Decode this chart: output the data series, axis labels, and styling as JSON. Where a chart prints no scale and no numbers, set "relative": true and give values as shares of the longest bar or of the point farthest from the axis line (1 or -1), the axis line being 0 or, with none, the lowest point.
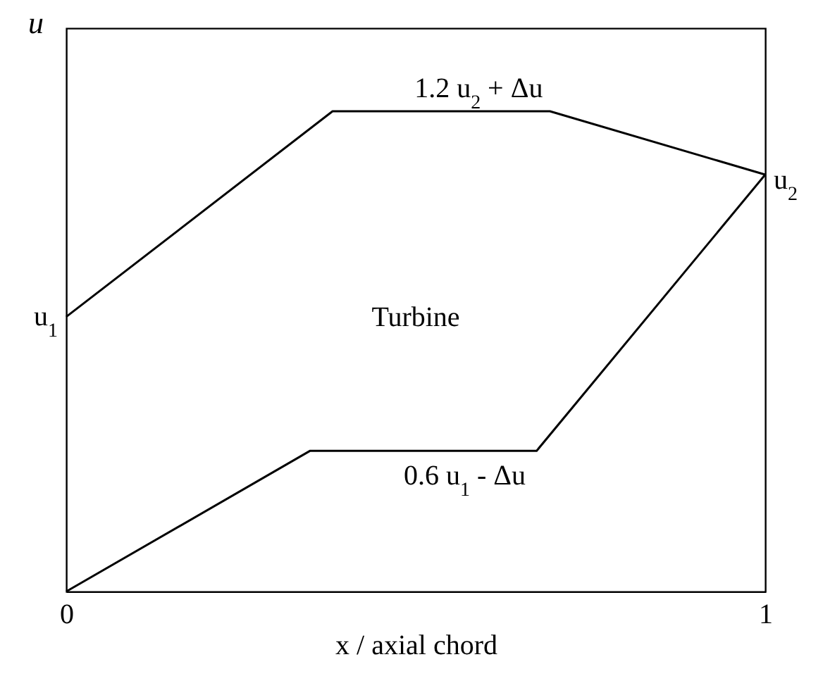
{
  "chart_data": {
    "type": "line",
    "relative": true,
    "xlabel": "x / axial chord",
    "ylabel": "u",
    "xlim": [
      0,
      1
    ],
    "xticks": [
      0,
      1
    ],
    "series": [
      {
        "color": "#000000",
        "x": [
          0,
          0.381,
          0.692,
          1
        ],
        "values": [
          0.572,
          1,
          1,
          0.868
        ]
      },
      {
        "color": "#000000",
        "x": [
          0,
          0.349,
          0.673,
          1
        ],
        "values": [
          0,
          0.293,
          0.293,
          0.868
        ]
      }
    ],
    "annotations": [
      {
        "text": "1.2 u$_{2}$ + Δu",
        "x": 0.59,
        "y": 1
      },
      {
        "text": "0.6 u$_{1}$ - Δu",
        "x": 0.57,
        "y": 0.293
      },
      {
        "text": "u$_{1}$",
        "x": 0,
        "y": 0.572
      },
      {
        "text": "u$_{2}$",
        "x": 1,
        "y": 0.868
      },
      "Turbine"
    ]
  }
}
